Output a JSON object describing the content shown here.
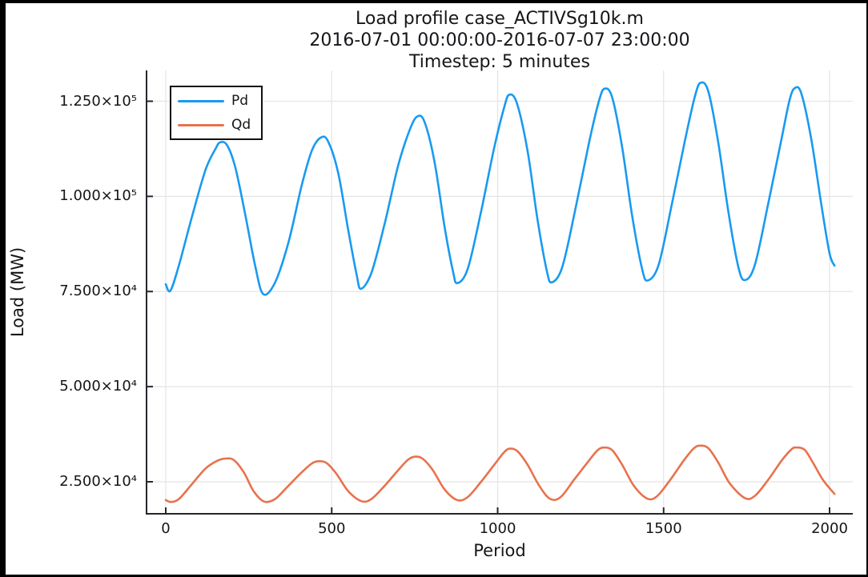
{
  "title": {
    "line1": "Load profile case_ACTIVSg10k.m",
    "line2": "2016-07-01 00:00:00-2016-07-07 23:00:00",
    "line3": "Timestep: 5 minutes"
  },
  "axes": {
    "x_label": "Period",
    "y_label": "Load (MW)",
    "x_ticks": [
      {
        "value": 0,
        "label": "0"
      },
      {
        "value": 500,
        "label": "500"
      },
      {
        "value": 1000,
        "label": "1000"
      },
      {
        "value": 1500,
        "label": "1500"
      },
      {
        "value": 2000,
        "label": "2000"
      }
    ],
    "y_ticks": [
      {
        "value": 25000,
        "label": "2.500×10⁴"
      },
      {
        "value": 50000,
        "label": "5.000×10⁴"
      },
      {
        "value": 75000,
        "label": "7.500×10⁴"
      },
      {
        "value": 100000,
        "label": "1.000×10⁵"
      },
      {
        "value": 125000,
        "label": "1.250×10⁵"
      }
    ],
    "grid_color": "#e4e4e6",
    "spine_color": "#26262b"
  },
  "legend": {
    "items": [
      {
        "label": "Pd",
        "color": "#189af2"
      },
      {
        "label": "Qd",
        "color": "#e8724d"
      }
    ]
  },
  "chart_data": {
    "type": "line",
    "title": "Load profile case_ACTIVSg10k.m 2016-07-01 00:00:00-2016-07-07 23:00:00 Timestep: 5 minutes",
    "xlabel": "Period",
    "ylabel": "Load (MW)",
    "x_unit": "5-minute timesteps over 7 days",
    "xlim": [
      -58,
      2070
    ],
    "ylim": [
      16600,
      133200
    ],
    "grid": true,
    "legend_position": "top-left",
    "series": [
      {
        "name": "Pd",
        "color": "#189af2",
        "points": [
          [
            0,
            76900
          ],
          [
            14,
            75200
          ],
          [
            40,
            82000
          ],
          [
            80,
            95000
          ],
          [
            120,
            107000
          ],
          [
            150,
            112500
          ],
          [
            164,
            114200
          ],
          [
            185,
            113400
          ],
          [
            210,
            107500
          ],
          [
            240,
            95000
          ],
          [
            270,
            81500
          ],
          [
            294,
            74300
          ],
          [
            330,
            77500
          ],
          [
            370,
            88000
          ],
          [
            410,
            103000
          ],
          [
            440,
            112000
          ],
          [
            468,
            115500
          ],
          [
            490,
            114300
          ],
          [
            520,
            106000
          ],
          [
            550,
            91000
          ],
          [
            575,
            79500
          ],
          [
            588,
            75700
          ],
          [
            620,
            80000
          ],
          [
            660,
            93000
          ],
          [
            700,
            108000
          ],
          [
            735,
            117500
          ],
          [
            758,
            121000
          ],
          [
            780,
            119500
          ],
          [
            810,
            109000
          ],
          [
            840,
            92000
          ],
          [
            865,
            80500
          ],
          [
            878,
            77200
          ],
          [
            910,
            81000
          ],
          [
            950,
            96000
          ],
          [
            990,
            113000
          ],
          [
            1020,
            123500
          ],
          [
            1035,
            126700
          ],
          [
            1058,
            124500
          ],
          [
            1090,
            112000
          ],
          [
            1120,
            94000
          ],
          [
            1148,
            80500
          ],
          [
            1163,
            77400
          ],
          [
            1195,
            81500
          ],
          [
            1235,
            97000
          ],
          [
            1275,
            114000
          ],
          [
            1305,
            125000
          ],
          [
            1322,
            128300
          ],
          [
            1345,
            126000
          ],
          [
            1375,
            113000
          ],
          [
            1405,
            95000
          ],
          [
            1435,
            81000
          ],
          [
            1452,
            77900
          ],
          [
            1485,
            82000
          ],
          [
            1525,
            98000
          ],
          [
            1565,
            115000
          ],
          [
            1595,
            126500
          ],
          [
            1612,
            129900
          ],
          [
            1635,
            127500
          ],
          [
            1665,
            114000
          ],
          [
            1695,
            96000
          ],
          [
            1725,
            81500
          ],
          [
            1745,
            78000
          ],
          [
            1775,
            82000
          ],
          [
            1815,
            98000
          ],
          [
            1855,
            115000
          ],
          [
            1880,
            125500
          ],
          [
            1896,
            128500
          ],
          [
            1915,
            127000
          ],
          [
            1945,
            115000
          ],
          [
            1975,
            98000
          ],
          [
            2000,
            85000
          ],
          [
            2015,
            81800
          ]
        ]
      },
      {
        "name": "Qd",
        "color": "#e8724d",
        "points": [
          [
            0,
            20200
          ],
          [
            15,
            19700
          ],
          [
            40,
            20500
          ],
          [
            80,
            24500
          ],
          [
            120,
            28500
          ],
          [
            155,
            30500
          ],
          [
            180,
            31100
          ],
          [
            205,
            30700
          ],
          [
            235,
            27500
          ],
          [
            265,
            22500
          ],
          [
            296,
            19800
          ],
          [
            330,
            20500
          ],
          [
            370,
            24000
          ],
          [
            410,
            27500
          ],
          [
            440,
            29800
          ],
          [
            460,
            30400
          ],
          [
            485,
            29900
          ],
          [
            515,
            27000
          ],
          [
            550,
            22500
          ],
          [
            590,
            19900
          ],
          [
            620,
            20500
          ],
          [
            660,
            24000
          ],
          [
            700,
            28000
          ],
          [
            730,
            30800
          ],
          [
            752,
            31600
          ],
          [
            775,
            31000
          ],
          [
            805,
            28000
          ],
          [
            840,
            23000
          ],
          [
            878,
            20200
          ],
          [
            910,
            21000
          ],
          [
            950,
            25000
          ],
          [
            990,
            29500
          ],
          [
            1020,
            32800
          ],
          [
            1037,
            33700
          ],
          [
            1060,
            33000
          ],
          [
            1090,
            29500
          ],
          [
            1125,
            24000
          ],
          [
            1158,
            20500
          ],
          [
            1190,
            21000
          ],
          [
            1230,
            25500
          ],
          [
            1270,
            30000
          ],
          [
            1300,
            33200
          ],
          [
            1320,
            34000
          ],
          [
            1345,
            33300
          ],
          [
            1375,
            29500
          ],
          [
            1410,
            24000
          ],
          [
            1450,
            20600
          ],
          [
            1480,
            21200
          ],
          [
            1520,
            25500
          ],
          [
            1560,
            30500
          ],
          [
            1590,
            33700
          ],
          [
            1610,
            34500
          ],
          [
            1635,
            33800
          ],
          [
            1665,
            30000
          ],
          [
            1700,
            24500
          ],
          [
            1745,
            20700
          ],
          [
            1775,
            21300
          ],
          [
            1815,
            25500
          ],
          [
            1855,
            30500
          ],
          [
            1885,
            33500
          ],
          [
            1900,
            34000
          ],
          [
            1925,
            33400
          ],
          [
            1950,
            30000
          ],
          [
            1980,
            25500
          ],
          [
            2015,
            21800
          ]
        ]
      }
    ]
  }
}
